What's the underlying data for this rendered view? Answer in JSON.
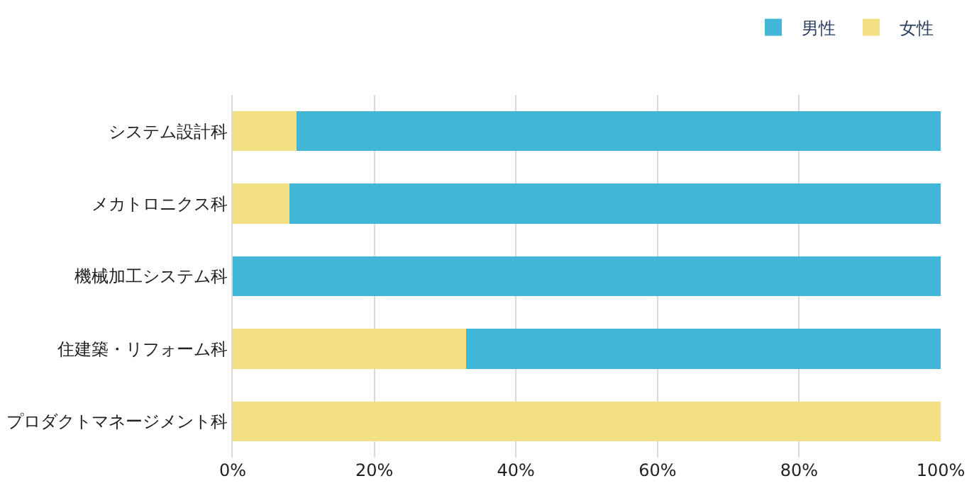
{
  "chart_data": {
    "type": "bar",
    "orientation": "horizontal",
    "stacked": true,
    "categories": [
      "システム設計科",
      "メカトロニクス科",
      "機械加工システム科",
      "住建築・リフォーム科",
      "プロダクトマネージメント科"
    ],
    "series": [
      {
        "name": "女性",
        "color": "#f3e083",
        "values": [
          9,
          8,
          0,
          33,
          100
        ]
      },
      {
        "name": "男性",
        "color": "#41b6d6",
        "values": [
          91,
          92,
          100,
          67,
          0
        ]
      }
    ],
    "xlim": [
      0,
      100
    ],
    "xticks": [
      {
        "value": 0,
        "label": "0%"
      },
      {
        "value": 20,
        "label": "20%"
      },
      {
        "value": 40,
        "label": "40%"
      },
      {
        "value": 60,
        "label": "60%"
      },
      {
        "value": 80,
        "label": "80%"
      },
      {
        "value": 100,
        "label": "100%"
      }
    ],
    "grid": "x",
    "legend": "top right"
  }
}
